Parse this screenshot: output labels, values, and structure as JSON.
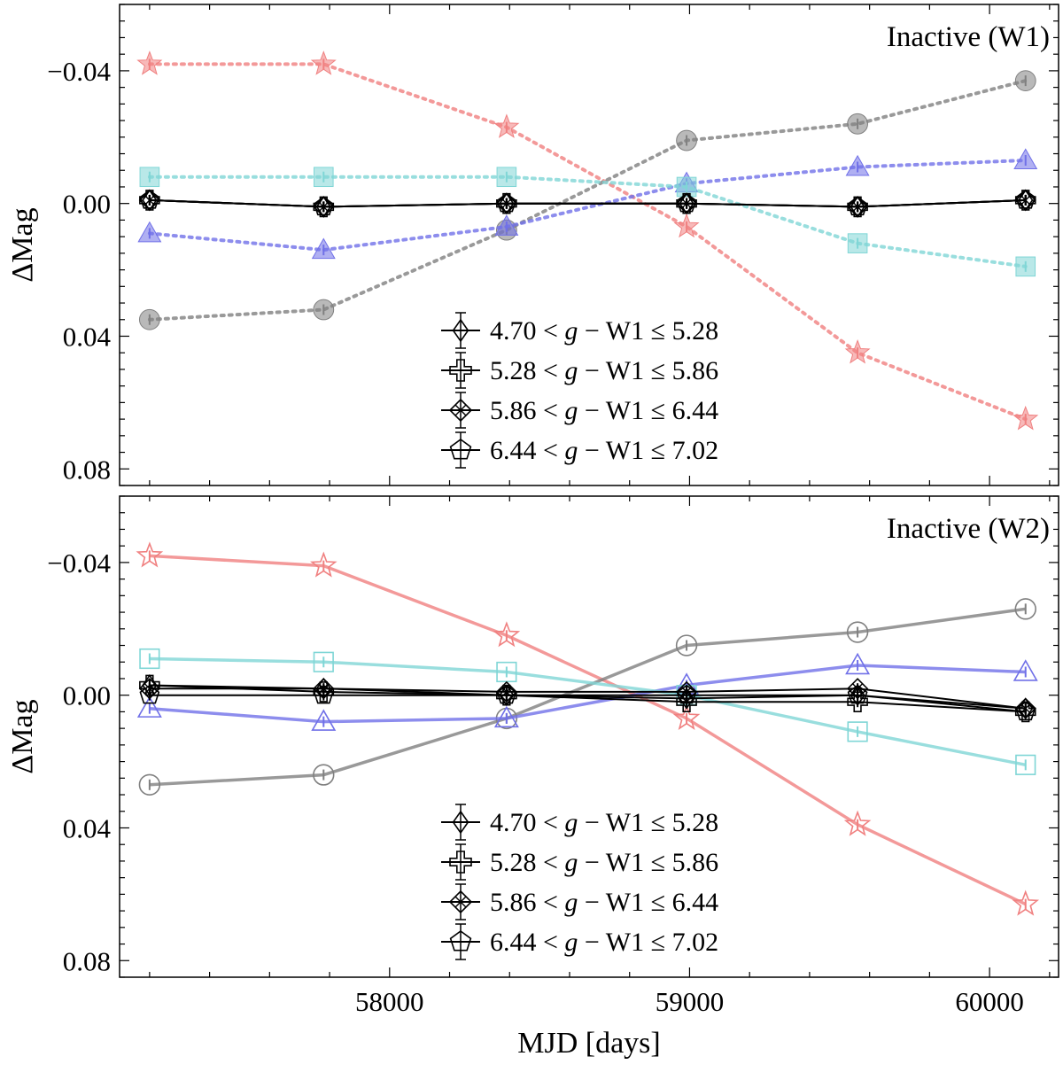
{
  "chart_data": [
    {
      "type": "line",
      "title": "Inactive (W1)",
      "xlabel": "",
      "ylabel": "ΔMag",
      "xlim": [
        57100,
        60230
      ],
      "ylim": [
        0.085,
        -0.06
      ],
      "y_inverted": true,
      "x": [
        57200,
        57780,
        58390,
        58990,
        59560,
        60120
      ],
      "yticks": [
        -0.04,
        0.0,
        0.04,
        0.08
      ],
      "ytick_labels": [
        "−0.04",
        "0.00",
        "0.04",
        "0.08"
      ],
      "series": [
        {
          "name": "red stars",
          "marker": "star",
          "filled": true,
          "line": "dotted",
          "color": "#f08080",
          "values": [
            -0.042,
            -0.042,
            -0.023,
            0.007,
            0.045,
            0.065
          ]
        },
        {
          "name": "gray circles",
          "marker": "circle",
          "filled": true,
          "line": "dotted",
          "color": "#808080",
          "values": [
            0.035,
            0.032,
            0.008,
            -0.019,
            -0.024,
            -0.037
          ]
        },
        {
          "name": "blue triangles",
          "marker": "triangle",
          "filled": true,
          "line": "dotted",
          "color": "#7070e8",
          "values": [
            0.009,
            0.014,
            0.007,
            -0.006,
            -0.011,
            -0.013
          ]
        },
        {
          "name": "cyan squares",
          "marker": "square",
          "filled": true,
          "line": "dotted",
          "color": "#7fd6d6",
          "values": [
            -0.008,
            -0.008,
            -0.008,
            -0.005,
            0.012,
            0.019
          ]
        },
        {
          "name": "4.70 < g − W1 ≤ 5.28",
          "marker": "diamond",
          "filled": false,
          "line": "solid",
          "color": "#000000",
          "values": [
            -0.001,
            0.001,
            0.0,
            0.0,
            0.001,
            -0.001
          ]
        },
        {
          "name": "5.28 < g − W1 ≤ 5.86",
          "marker": "plus",
          "filled": false,
          "line": "solid",
          "color": "#000000",
          "values": [
            -0.001,
            0.001,
            0.0,
            0.0,
            0.001,
            -0.001
          ]
        },
        {
          "name": "5.86 < g − W1 ≤ 6.44",
          "marker": "x-diamond",
          "filled": false,
          "line": "solid",
          "color": "#000000",
          "values": [
            -0.001,
            0.001,
            0.0,
            0.0,
            0.001,
            -0.001
          ]
        },
        {
          "name": "6.44 < g − W1 ≤ 7.02",
          "marker": "pentagon",
          "filled": false,
          "line": "solid",
          "color": "#000000",
          "values": [
            -0.001,
            0.001,
            0.0,
            0.0,
            0.001,
            -0.001
          ]
        }
      ],
      "legend": {
        "placement": "lower-center",
        "entries": [
          {
            "label_a": "4.70",
            "label_b": "5.28",
            "marker": "diamond"
          },
          {
            "label_a": "5.28",
            "label_b": "5.86",
            "marker": "plus"
          },
          {
            "label_a": "5.86",
            "label_b": "6.44",
            "marker": "x-diamond"
          },
          {
            "label_a": "6.44",
            "label_b": "7.02",
            "marker": "pentagon"
          }
        ]
      }
    },
    {
      "type": "line",
      "title": "Inactive (W2)",
      "xlabel": "MJD [days]",
      "ylabel": "ΔMag",
      "xlim": [
        57100,
        60230
      ],
      "ylim": [
        0.085,
        -0.06
      ],
      "y_inverted": true,
      "x": [
        57200,
        57780,
        58390,
        58990,
        59560,
        60120
      ],
      "xticks": [
        58000,
        59000,
        60000
      ],
      "xtick_labels": [
        "58000",
        "59000",
        "60000"
      ],
      "yticks": [
        -0.04,
        0.0,
        0.04,
        0.08
      ],
      "ytick_labels": [
        "−0.04",
        "0.00",
        "0.04",
        "0.08"
      ],
      "series": [
        {
          "name": "red stars",
          "marker": "star",
          "filled": false,
          "line": "solid",
          "color": "#f08080",
          "values": [
            -0.042,
            -0.039,
            -0.018,
            0.007,
            0.039,
            0.063
          ]
        },
        {
          "name": "gray circles",
          "marker": "circle",
          "filled": false,
          "line": "solid",
          "color": "#808080",
          "values": [
            0.027,
            0.024,
            0.007,
            -0.015,
            -0.019,
            -0.026
          ]
        },
        {
          "name": "blue triangles",
          "marker": "triangle",
          "filled": false,
          "line": "solid",
          "color": "#7070e8",
          "values": [
            0.004,
            0.008,
            0.007,
            -0.003,
            -0.009,
            -0.007
          ]
        },
        {
          "name": "cyan squares",
          "marker": "square",
          "filled": false,
          "line": "solid",
          "color": "#7fd6d6",
          "values": [
            -0.011,
            -0.01,
            -0.007,
            0.0,
            0.011,
            0.021
          ]
        },
        {
          "name": "4.70 < g − W1 ≤ 5.28",
          "marker": "diamond",
          "filled": false,
          "line": "solid",
          "color": "#000000",
          "values": [
            -0.003,
            -0.002,
            0.0,
            0.001,
            0.0,
            0.004
          ]
        },
        {
          "name": "5.28 < g − W1 ≤ 5.86",
          "marker": "plus",
          "filled": false,
          "line": "solid",
          "color": "#000000",
          "values": [
            -0.003,
            -0.001,
            0.0,
            0.002,
            0.002,
            0.005
          ]
        },
        {
          "name": "5.86 < g − W1 ≤ 6.44",
          "marker": "x-diamond",
          "filled": false,
          "line": "solid",
          "color": "#000000",
          "values": [
            -0.002,
            -0.002,
            -0.001,
            -0.001,
            -0.002,
            0.004
          ]
        },
        {
          "name": "6.44 < g − W1 ≤ 7.02",
          "marker": "pentagon",
          "filled": false,
          "line": "solid",
          "color": "#000000",
          "values": [
            0.0,
            0.0,
            0.0,
            0.0,
            0.0,
            0.005
          ]
        }
      ],
      "legend": {
        "placement": "lower-center",
        "entries": [
          {
            "label_a": "4.70",
            "label_b": "5.28",
            "marker": "diamond"
          },
          {
            "label_a": "5.28",
            "label_b": "5.86",
            "marker": "plus"
          },
          {
            "label_a": "5.86",
            "label_b": "6.44",
            "marker": "x-diamond"
          },
          {
            "label_a": "6.44",
            "label_b": "7.02",
            "marker": "pentagon"
          }
        ]
      }
    }
  ]
}
